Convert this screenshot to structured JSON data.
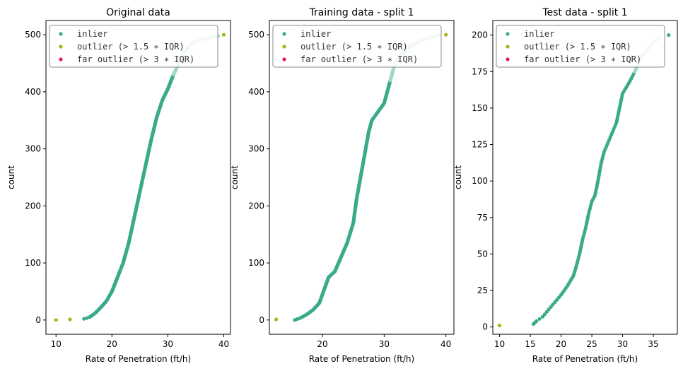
{
  "chart_data": [
    {
      "type": "scatter",
      "title": "Original data",
      "xlabel": "Rate of Penetration (ft/h)",
      "ylabel": "count",
      "xlim": [
        8.2,
        41.2
      ],
      "ylim": [
        -25,
        525
      ],
      "xticks": [
        10,
        20,
        30,
        40
      ],
      "yticks": [
        0,
        100,
        200,
        300,
        400,
        500
      ],
      "legend_position": "top-left",
      "legend": [
        "inlier",
        "outlier (> 1.5 ∗ IQR)",
        "far outlier (> 3 ∗ IQR)"
      ],
      "colors": {
        "inlier": "#3aaa8c",
        "inlier_light": "#9fd8c5",
        "outlier": "#a8b41a",
        "far_outlier": "#e5195f"
      },
      "inlier_curve": [
        [
          15.0,
          2
        ],
        [
          16.0,
          5
        ],
        [
          17.0,
          12
        ],
        [
          18.0,
          22
        ],
        [
          19.0,
          33
        ],
        [
          20.0,
          50
        ],
        [
          21.0,
          75
        ],
        [
          22.0,
          100
        ],
        [
          23.0,
          135
        ],
        [
          24.0,
          180
        ],
        [
          25.0,
          225
        ],
        [
          26.0,
          270
        ],
        [
          27.0,
          315
        ],
        [
          28.0,
          355
        ],
        [
          29.0,
          385
        ],
        [
          30.0,
          405
        ],
        [
          31.0,
          430
        ],
        [
          32.0,
          450
        ],
        [
          33.0,
          470
        ],
        [
          34.0,
          482
        ],
        [
          35.0,
          488
        ],
        [
          36.0,
          492
        ],
        [
          37.0,
          494
        ],
        [
          38.0,
          496
        ],
        [
          39.0,
          498
        ]
      ],
      "light_from": 31.0,
      "outliers": [
        [
          10.0,
          0
        ],
        [
          12.5,
          1
        ],
        [
          40.0,
          500
        ]
      ],
      "far_outliers": []
    },
    {
      "type": "scatter",
      "title": "Training data - split 1",
      "xlabel": "Rate of Penetration (ft/h)",
      "ylabel": "count",
      "xlim": [
        11.4,
        41.3
      ],
      "ylim": [
        -25,
        525
      ],
      "xticks": [
        20,
        30,
        40
      ],
      "yticks": [
        0,
        100,
        200,
        300,
        400,
        500
      ],
      "legend_position": "top-left",
      "legend": [
        "inlier",
        "outlier (> 1.5 ∗ IQR)",
        "far outlier (> 3 ∗ IQR)"
      ],
      "colors": {
        "inlier": "#3aaa8c",
        "inlier_light": "#9fd8c5",
        "outlier": "#a8b41a",
        "far_outlier": "#e5195f"
      },
      "inlier_curve": [
        [
          15.5,
          0
        ],
        [
          16.5,
          4
        ],
        [
          17.5,
          10
        ],
        [
          18.5,
          18
        ],
        [
          19.5,
          30
        ],
        [
          20.0,
          45
        ],
        [
          20.5,
          60
        ],
        [
          21.0,
          75
        ],
        [
          22.0,
          85
        ],
        [
          23.0,
          110
        ],
        [
          24.0,
          135
        ],
        [
          25.0,
          170
        ],
        [
          25.5,
          210
        ],
        [
          26.0,
          240
        ],
        [
          26.5,
          270
        ],
        [
          27.0,
          300
        ],
        [
          27.5,
          330
        ],
        [
          28.0,
          350
        ],
        [
          29.0,
          365
        ],
        [
          30.0,
          380
        ],
        [
          30.5,
          400
        ],
        [
          31.0,
          420
        ],
        [
          31.5,
          440
        ],
        [
          32.0,
          455
        ],
        [
          33.0,
          468
        ],
        [
          34.0,
          478
        ],
        [
          35.0,
          484
        ],
        [
          36.0,
          490
        ],
        [
          37.0,
          493
        ],
        [
          38.0,
          497
        ],
        [
          39.0,
          499
        ]
      ],
      "light_from": 31.0,
      "outliers": [
        [
          12.5,
          1
        ],
        [
          40.0,
          500
        ]
      ],
      "far_outliers": []
    },
    {
      "type": "scatter",
      "title": "Test data - split 1",
      "xlabel": "Rate of Penetration (ft/h)",
      "ylabel": "count",
      "xlim": [
        8.9,
        38.9
      ],
      "ylim": [
        -5,
        210
      ],
      "xticks": [
        10,
        15,
        20,
        25,
        30,
        35
      ],
      "yticks": [
        0,
        25,
        50,
        75,
        100,
        125,
        150,
        175,
        200
      ],
      "legend_position": "top-left",
      "legend": [
        "inlier",
        "outlier (> 1.5 ∗ IQR)",
        "far outlier (> 3 ∗ IQR)"
      ],
      "colors": {
        "inlier": "#3aaa8c",
        "inlier_light": "#9fd8c5",
        "outlier": "#a8b41a",
        "far_outlier": "#e5195f"
      },
      "inlier_curve": [
        [
          15.5,
          2
        ],
        [
          16.0,
          4
        ],
        [
          17.0,
          7
        ],
        [
          18.0,
          12
        ],
        [
          19.0,
          17
        ],
        [
          20.0,
          22
        ],
        [
          21.0,
          28
        ],
        [
          22.0,
          35
        ],
        [
          22.5,
          42
        ],
        [
          23.0,
          50
        ],
        [
          23.5,
          60
        ],
        [
          24.0,
          68
        ],
        [
          24.5,
          78
        ],
        [
          25.0,
          86
        ],
        [
          25.5,
          90
        ],
        [
          26.0,
          100
        ],
        [
          26.5,
          112
        ],
        [
          27.0,
          120
        ],
        [
          27.5,
          125
        ],
        [
          28.0,
          130
        ],
        [
          28.5,
          135
        ],
        [
          29.0,
          140
        ],
        [
          29.5,
          150
        ],
        [
          30.0,
          160
        ],
        [
          31.0,
          167
        ],
        [
          32.0,
          175
        ],
        [
          33.0,
          185
        ],
        [
          34.0,
          190
        ],
        [
          35.0,
          195
        ],
        [
          36.0,
          198
        ]
      ],
      "light_from": 32.0,
      "outliers": [
        [
          10.0,
          1
        ]
      ],
      "far_outliers": [],
      "inlier_extra": [
        [
          37.5,
          200
        ]
      ]
    }
  ]
}
